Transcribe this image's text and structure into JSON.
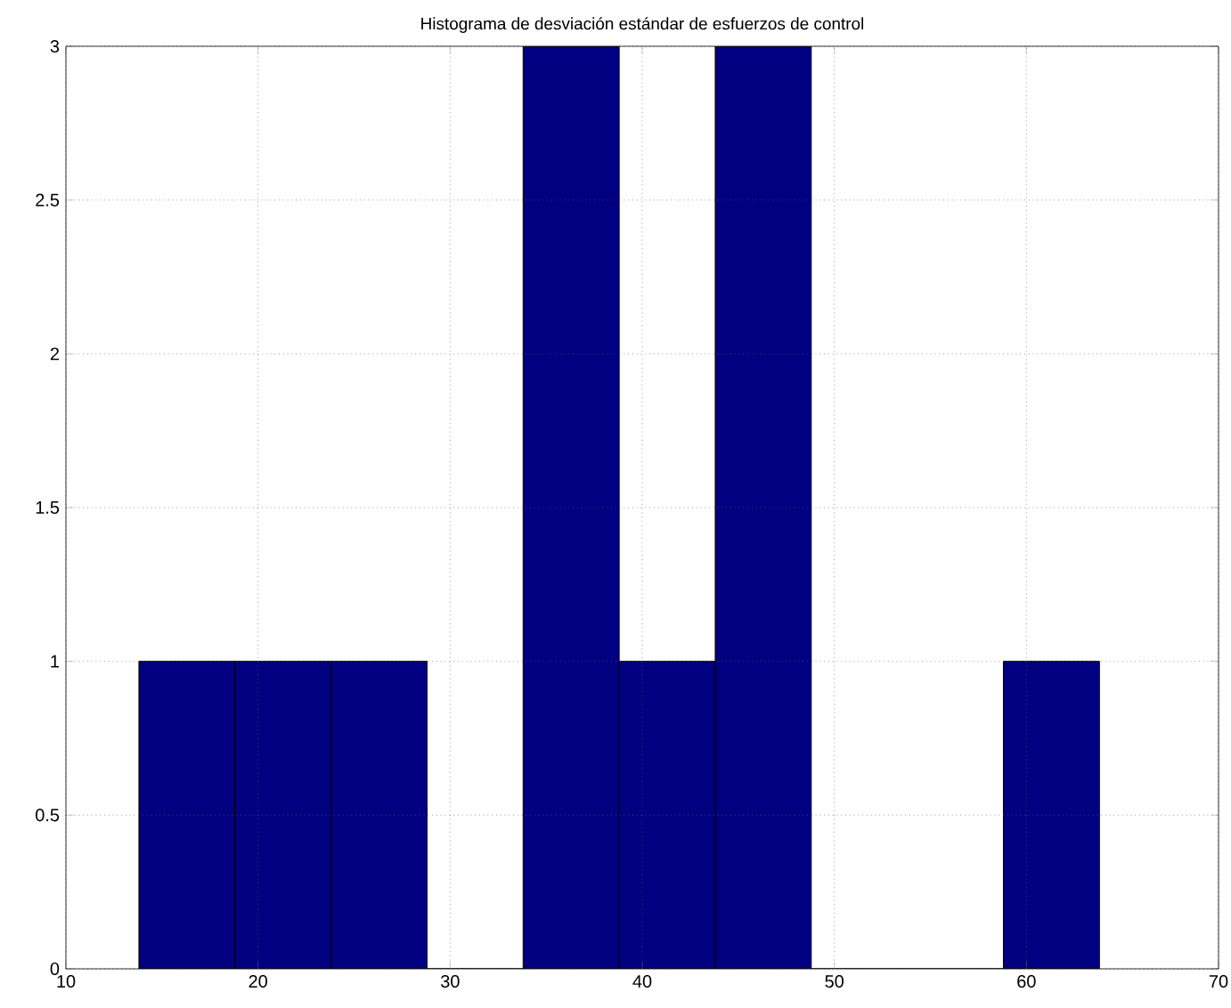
{
  "chart_data": {
    "type": "histogram",
    "title": "Histograma de desviación estándar de esfuerzos de control",
    "bins": [
      13.8,
      18.8,
      23.8,
      28.8,
      33.8,
      38.8,
      43.8,
      48.8,
      53.8,
      58.8,
      63.8
    ],
    "values": [
      1,
      1,
      1,
      0,
      3,
      1,
      3,
      0,
      0,
      1
    ],
    "color": "#000080",
    "xlim": [
      10,
      70
    ],
    "xticks": [
      10,
      20,
      30,
      40,
      50,
      60,
      70
    ],
    "ylim": [
      0,
      3
    ],
    "yticks": [
      0,
      0.5,
      1,
      1.5,
      2,
      2.5,
      3
    ],
    "grid": true
  }
}
